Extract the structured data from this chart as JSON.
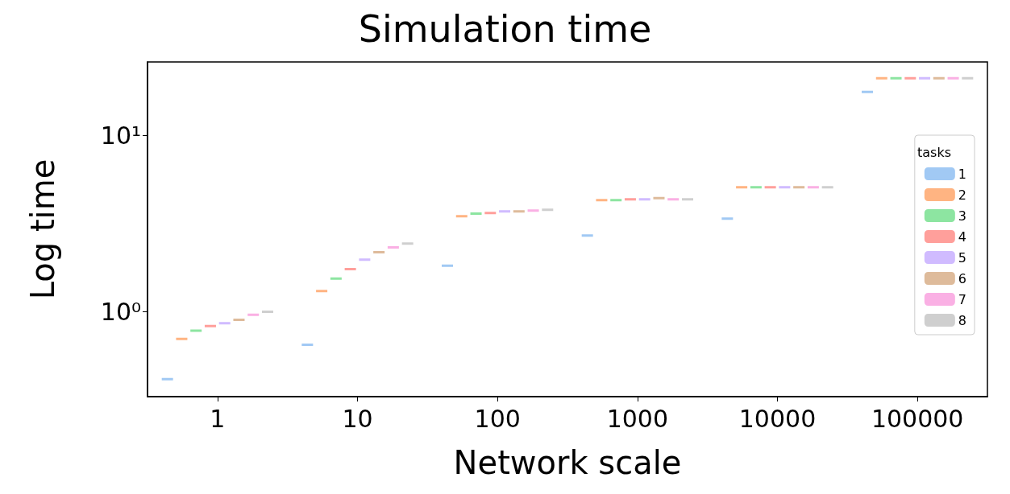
{
  "chart_data": {
    "type": "box",
    "title": "Simulation time",
    "xlabel": "Network scale",
    "ylabel": "Log time",
    "legend_title": "tasks",
    "categories": [
      "1",
      "10",
      "100",
      "1000",
      "10000",
      "100000"
    ],
    "log": "y",
    "ylim": [
      0.33,
      26
    ],
    "yticks": [
      {
        "value": 1,
        "label": "10⁰"
      },
      {
        "value": 10,
        "label": "10¹"
      }
    ],
    "grid": false,
    "legend": "right",
    "series": [
      {
        "name": "1",
        "color": "#a1c9f4",
        "boxes": [
          {
            "low": 0.415,
            "q1": 0.415,
            "median": 0.415,
            "q3": 0.415,
            "high": 0.415
          },
          {
            "low": 0.65,
            "q1": 0.65,
            "median": 0.65,
            "q3": 0.65,
            "high": 0.65
          },
          {
            "low": 1.82,
            "q1": 1.82,
            "median": 1.82,
            "q3": 1.82,
            "high": 1.82
          },
          {
            "low": 2.7,
            "q1": 2.7,
            "median": 2.7,
            "q3": 2.7,
            "high": 2.7
          },
          {
            "low": 3.37,
            "q1": 3.37,
            "median": 3.37,
            "q3": 3.37,
            "high": 3.37
          },
          {
            "low": 17.6,
            "q1": 17.6,
            "median": 17.6,
            "q3": 17.6,
            "high": 17.6
          }
        ]
      },
      {
        "name": "2",
        "color": "#ffb482",
        "boxes": [
          {
            "low": 0.7,
            "q1": 0.7,
            "median": 0.7,
            "q3": 0.7,
            "high": 0.7
          },
          {
            "low": 1.31,
            "q1": 1.31,
            "median": 1.31,
            "q3": 1.31,
            "high": 1.31
          },
          {
            "low": 3.47,
            "q1": 3.47,
            "median": 3.47,
            "q3": 3.47,
            "high": 3.47
          },
          {
            "low": 4.28,
            "q1": 4.28,
            "median": 4.28,
            "q3": 4.28,
            "high": 4.28
          },
          {
            "low": 5.07,
            "q1": 5.07,
            "median": 5.07,
            "q3": 5.07,
            "high": 5.07
          },
          {
            "low": 21,
            "q1": 21,
            "median": 21,
            "q3": 21,
            "high": 21
          }
        ]
      },
      {
        "name": "3",
        "color": "#8de5a1",
        "boxes": [
          {
            "low": 0.78,
            "q1": 0.78,
            "median": 0.78,
            "q3": 0.78,
            "high": 0.78
          },
          {
            "low": 1.54,
            "q1": 1.54,
            "median": 1.54,
            "q3": 1.54,
            "high": 1.54
          },
          {
            "low": 3.59,
            "q1": 3.59,
            "median": 3.59,
            "q3": 3.59,
            "high": 3.59
          },
          {
            "low": 4.28,
            "q1": 4.28,
            "median": 4.28,
            "q3": 4.28,
            "high": 4.28
          },
          {
            "low": 5.07,
            "q1": 5.07,
            "median": 5.07,
            "q3": 5.07,
            "high": 5.07
          },
          {
            "low": 21,
            "q1": 21,
            "median": 21,
            "q3": 21,
            "high": 21
          }
        ]
      },
      {
        "name": "4",
        "color": "#ff9f9b",
        "boxes": [
          {
            "low": 0.83,
            "q1": 0.83,
            "median": 0.83,
            "q3": 0.83,
            "high": 0.83
          },
          {
            "low": 1.74,
            "q1": 1.74,
            "median": 1.74,
            "q3": 1.74,
            "high": 1.74
          },
          {
            "low": 3.62,
            "q1": 3.62,
            "median": 3.62,
            "q3": 3.62,
            "high": 3.62
          },
          {
            "low": 4.33,
            "q1": 4.33,
            "median": 4.33,
            "q3": 4.33,
            "high": 4.33
          },
          {
            "low": 5.07,
            "q1": 5.07,
            "median": 5.07,
            "q3": 5.07,
            "high": 5.07
          },
          {
            "low": 21,
            "q1": 21,
            "median": 21,
            "q3": 21,
            "high": 21
          }
        ]
      },
      {
        "name": "5",
        "color": "#d0bbff",
        "boxes": [
          {
            "low": 0.86,
            "q1": 0.86,
            "median": 0.86,
            "q3": 0.86,
            "high": 0.86
          },
          {
            "low": 1.97,
            "q1": 1.97,
            "median": 1.97,
            "q3": 1.97,
            "high": 1.97
          },
          {
            "low": 3.7,
            "q1": 3.7,
            "median": 3.7,
            "q3": 3.7,
            "high": 3.7
          },
          {
            "low": 4.33,
            "q1": 4.33,
            "median": 4.33,
            "q3": 4.33,
            "high": 4.33
          },
          {
            "low": 5.07,
            "q1": 5.07,
            "median": 5.07,
            "q3": 5.07,
            "high": 5.07
          },
          {
            "low": 21,
            "q1": 21,
            "median": 21,
            "q3": 21,
            "high": 21
          }
        ]
      },
      {
        "name": "6",
        "color": "#debb9b",
        "boxes": [
          {
            "low": 0.9,
            "q1": 0.9,
            "median": 0.9,
            "q3": 0.9,
            "high": 0.9
          },
          {
            "low": 2.17,
            "q1": 2.17,
            "median": 2.17,
            "q3": 2.17,
            "high": 2.17
          },
          {
            "low": 3.7,
            "q1": 3.7,
            "median": 3.7,
            "q3": 3.7,
            "high": 3.7
          },
          {
            "low": 4.4,
            "q1": 4.4,
            "median": 4.4,
            "q3": 4.4,
            "high": 4.4
          },
          {
            "low": 5.07,
            "q1": 5.07,
            "median": 5.07,
            "q3": 5.07,
            "high": 5.07
          },
          {
            "low": 21,
            "q1": 21,
            "median": 21,
            "q3": 21,
            "high": 21
          }
        ]
      },
      {
        "name": "7",
        "color": "#fab0e4",
        "boxes": [
          {
            "low": 0.96,
            "q1": 0.96,
            "median": 0.96,
            "q3": 0.96,
            "high": 0.96
          },
          {
            "low": 2.31,
            "q1": 2.31,
            "median": 2.31,
            "q3": 2.31,
            "high": 2.31
          },
          {
            "low": 3.74,
            "q1": 3.74,
            "median": 3.74,
            "q3": 3.74,
            "high": 3.74
          },
          {
            "low": 4.33,
            "q1": 4.33,
            "median": 4.33,
            "q3": 4.33,
            "high": 4.33
          },
          {
            "low": 5.07,
            "q1": 5.07,
            "median": 5.07,
            "q3": 5.07,
            "high": 5.07
          },
          {
            "low": 21,
            "q1": 21,
            "median": 21,
            "q3": 21,
            "high": 21
          }
        ]
      },
      {
        "name": "8",
        "color": "#cfcfcf",
        "boxes": [
          {
            "low": 1.0,
            "q1": 1.0,
            "median": 1.0,
            "q3": 1.0,
            "high": 1.0
          },
          {
            "low": 2.43,
            "q1": 2.43,
            "median": 2.43,
            "q3": 2.43,
            "high": 2.43
          },
          {
            "low": 3.78,
            "q1": 3.78,
            "median": 3.78,
            "q3": 3.78,
            "high": 3.78
          },
          {
            "low": 4.33,
            "q1": 4.33,
            "median": 4.33,
            "q3": 4.33,
            "high": 4.33
          },
          {
            "low": 5.07,
            "q1": 5.07,
            "median": 5.07,
            "q3": 5.07,
            "high": 5.07
          },
          {
            "low": 21,
            "q1": 21,
            "median": 21,
            "q3": 21,
            "high": 21
          }
        ]
      }
    ]
  }
}
